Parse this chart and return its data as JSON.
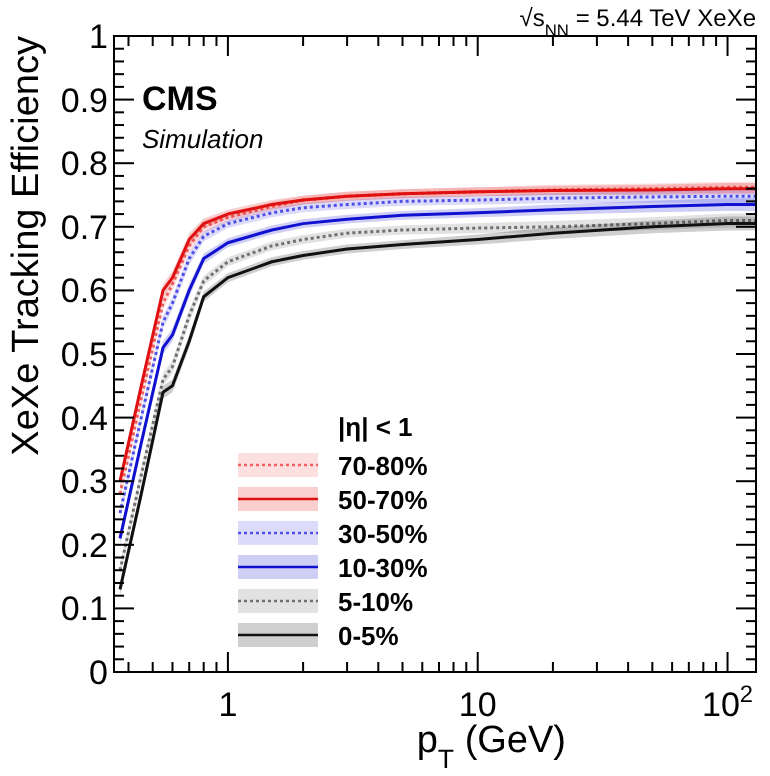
{
  "chart_data": {
    "type": "line",
    "title": "√s$_{NN}$ = 5.44 TeV XeXe",
    "xlabel": "p$_{T}$ (GeV)",
    "ylabel": "XeXe Tracking Efficiency",
    "annotations": [
      "CMS",
      "Simulation"
    ],
    "legend_title": "|η| < 1",
    "legend": "bottom",
    "log": "x",
    "xlim": [
      0.35,
      130
    ],
    "xticks": [
      {
        "value": 0.4,
        "label": null
      },
      {
        "value": 0.5,
        "label": null
      },
      {
        "value": 0.6,
        "label": null
      },
      {
        "value": 0.7,
        "label": null
      },
      {
        "value": 0.8,
        "label": null
      },
      {
        "value": 0.9,
        "label": null
      },
      1,
      {
        "value": 2,
        "label": null
      },
      {
        "value": 3,
        "label": null
      },
      {
        "value": 4,
        "label": null
      },
      {
        "value": 5,
        "label": null
      },
      {
        "value": 6,
        "label": null
      },
      {
        "value": 7,
        "label": null
      },
      {
        "value": 8,
        "label": null
      },
      {
        "value": 9,
        "label": null
      },
      10,
      {
        "value": 20,
        "label": null
      },
      {
        "value": 30,
        "label": null
      },
      {
        "value": 40,
        "label": null
      },
      {
        "value": 50,
        "label": null
      },
      {
        "value": 60,
        "label": null
      },
      {
        "value": 70,
        "label": null
      },
      {
        "value": 80,
        "label": null
      },
      {
        "value": 90,
        "label": null
      },
      {
        "value": 100,
        "label": "10$^{2}$"
      }
    ],
    "ylim": [
      0,
      1
    ],
    "yticks": [
      0,
      0.1,
      0.2,
      0.3,
      0.4,
      0.5,
      0.6,
      0.7,
      0.8,
      0.9,
      1
    ],
    "x": [
      0.37,
      0.45,
      0.55,
      0.6,
      0.7,
      0.8,
      1,
      1.5,
      2,
      3,
      5,
      10,
      20,
      50,
      100,
      130
    ],
    "series": [
      {
        "name": "70-80%",
        "color": "#f06060",
        "line_style": "dotted",
        "values": [
          0.28,
          0.43,
          0.58,
          0.61,
          0.67,
          0.7,
          0.715,
          0.732,
          0.742,
          0.748,
          0.752,
          0.755,
          0.758,
          0.76,
          0.762,
          0.762
        ],
        "lower": [
          0.27,
          0.42,
          0.57,
          0.6,
          0.66,
          0.69,
          0.707,
          0.725,
          0.735,
          0.741,
          0.745,
          0.748,
          0.75,
          0.752,
          0.753,
          0.753
        ],
        "upper": [
          0.29,
          0.44,
          0.59,
          0.62,
          0.68,
          0.71,
          0.723,
          0.739,
          0.749,
          0.755,
          0.759,
          0.762,
          0.766,
          0.768,
          0.771,
          0.771
        ]
      },
      {
        "name": "50-70%",
        "color": "#e01010",
        "line_style": "solid",
        "values": [
          0.3,
          0.45,
          0.6,
          0.62,
          0.68,
          0.705,
          0.72,
          0.735,
          0.742,
          0.748,
          0.752,
          0.755,
          0.757,
          0.758,
          0.76,
          0.76
        ],
        "lower": [
          0.29,
          0.44,
          0.59,
          0.61,
          0.67,
          0.697,
          0.713,
          0.728,
          0.735,
          0.741,
          0.745,
          0.748,
          0.75,
          0.75,
          0.751,
          0.751
        ],
        "upper": [
          0.31,
          0.46,
          0.61,
          0.63,
          0.69,
          0.713,
          0.727,
          0.742,
          0.749,
          0.755,
          0.759,
          0.762,
          0.764,
          0.766,
          0.769,
          0.769
        ]
      },
      {
        "name": "30-50%",
        "color": "#5050e8",
        "line_style": "dotted",
        "values": [
          0.25,
          0.4,
          0.55,
          0.58,
          0.65,
          0.685,
          0.705,
          0.722,
          0.73,
          0.735,
          0.74,
          0.742,
          0.745,
          0.747,
          0.748,
          0.748
        ],
        "lower": [
          0.24,
          0.39,
          0.54,
          0.57,
          0.64,
          0.677,
          0.698,
          0.715,
          0.723,
          0.728,
          0.733,
          0.735,
          0.737,
          0.738,
          0.738,
          0.738
        ],
        "upper": [
          0.26,
          0.41,
          0.56,
          0.59,
          0.66,
          0.693,
          0.712,
          0.729,
          0.737,
          0.742,
          0.747,
          0.749,
          0.753,
          0.756,
          0.758,
          0.758
        ]
      },
      {
        "name": "10-30%",
        "color": "#1010d0",
        "line_style": "solid",
        "values": [
          0.21,
          0.36,
          0.51,
          0.53,
          0.6,
          0.65,
          0.675,
          0.695,
          0.705,
          0.712,
          0.718,
          0.722,
          0.727,
          0.732,
          0.735,
          0.735
        ],
        "lower": [
          0.2,
          0.35,
          0.5,
          0.52,
          0.59,
          0.642,
          0.668,
          0.688,
          0.698,
          0.705,
          0.711,
          0.715,
          0.719,
          0.723,
          0.725,
          0.725
        ],
        "upper": [
          0.22,
          0.37,
          0.52,
          0.54,
          0.61,
          0.658,
          0.682,
          0.702,
          0.712,
          0.719,
          0.725,
          0.729,
          0.735,
          0.741,
          0.745,
          0.745
        ]
      },
      {
        "name": "5-10%",
        "color": "#707070",
        "line_style": "dotted",
        "values": [
          0.16,
          0.31,
          0.46,
          0.48,
          0.56,
          0.615,
          0.645,
          0.67,
          0.68,
          0.69,
          0.695,
          0.698,
          0.7,
          0.705,
          0.71,
          0.71
        ],
        "lower": [
          0.15,
          0.3,
          0.45,
          0.47,
          0.55,
          0.607,
          0.638,
          0.663,
          0.673,
          0.683,
          0.688,
          0.69,
          0.691,
          0.695,
          0.699,
          0.699
        ],
        "upper": [
          0.17,
          0.32,
          0.47,
          0.49,
          0.57,
          0.623,
          0.652,
          0.677,
          0.687,
          0.697,
          0.702,
          0.706,
          0.709,
          0.715,
          0.721,
          0.721
        ]
      },
      {
        "name": "0-5%",
        "color": "#111111",
        "line_style": "solid",
        "values": [
          0.13,
          0.28,
          0.44,
          0.45,
          0.52,
          0.59,
          0.62,
          0.645,
          0.655,
          0.665,
          0.672,
          0.68,
          0.69,
          0.7,
          0.705,
          0.705
        ],
        "lower": [
          0.12,
          0.27,
          0.43,
          0.44,
          0.51,
          0.582,
          0.613,
          0.638,
          0.648,
          0.658,
          0.665,
          0.672,
          0.681,
          0.69,
          0.694,
          0.694
        ],
        "upper": [
          0.14,
          0.29,
          0.45,
          0.46,
          0.53,
          0.598,
          0.627,
          0.652,
          0.662,
          0.672,
          0.679,
          0.688,
          0.699,
          0.71,
          0.716,
          0.716
        ]
      }
    ]
  }
}
